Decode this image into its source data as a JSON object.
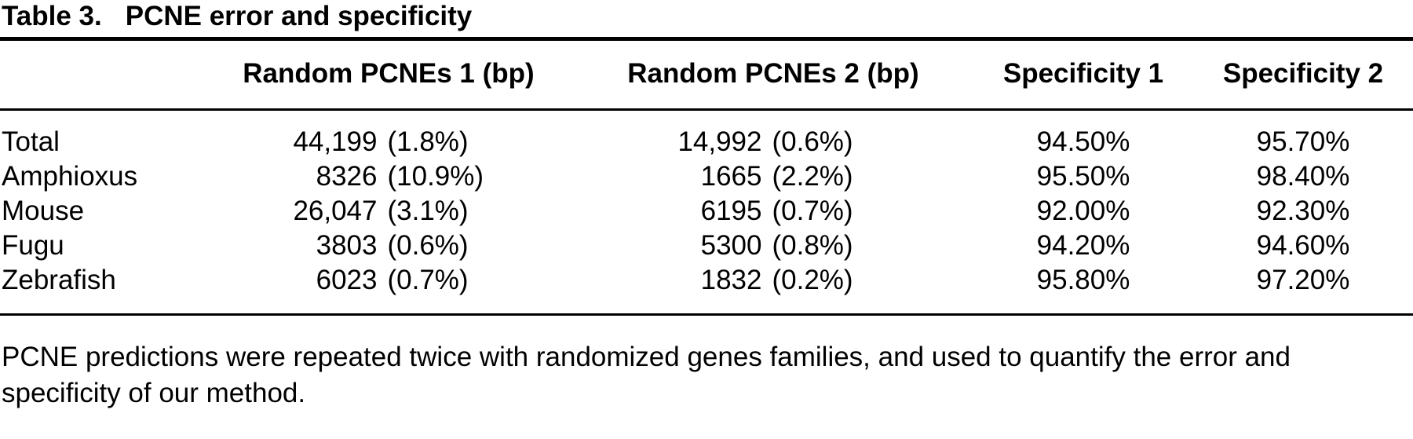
{
  "table": {
    "label": "Table 3.",
    "title": "PCNE error and specificity",
    "columns": [
      "",
      "Random PCNEs 1 (bp)",
      "Random PCNEs 2 (bp)",
      "Specificity 1",
      "Specificity 2"
    ],
    "rows": [
      {
        "name": "Total",
        "c1num": "44,199",
        "c1pct": "(1.8%)",
        "c2num": "14,992",
        "c2pct": "(0.6%)",
        "spec1": "94.50%",
        "spec2": "95.70%"
      },
      {
        "name": "Amphioxus",
        "c1num": "8326",
        "c1pct": "(10.9%)",
        "c2num": "1665",
        "c2pct": "(2.2%)",
        "spec1": "95.50%",
        "spec2": "98.40%"
      },
      {
        "name": "Mouse",
        "c1num": "26,047",
        "c1pct": "(3.1%)",
        "c2num": "6195",
        "c2pct": "(0.7%)",
        "spec1": "92.00%",
        "spec2": "92.30%"
      },
      {
        "name": "Fugu",
        "c1num": "3803",
        "c1pct": "(0.6%)",
        "c2num": "5300",
        "c2pct": "(0.8%)",
        "spec1": "94.20%",
        "spec2": "94.60%"
      },
      {
        "name": "Zebrafish",
        "c1num": "6023",
        "c1pct": "(0.7%)",
        "c2num": "1832",
        "c2pct": "(0.2%)",
        "spec1": "95.80%",
        "spec2": "97.20%"
      }
    ],
    "footnote": "PCNE predictions were repeated twice with randomized genes families, and used to quantify the error and specificity of our method."
  }
}
